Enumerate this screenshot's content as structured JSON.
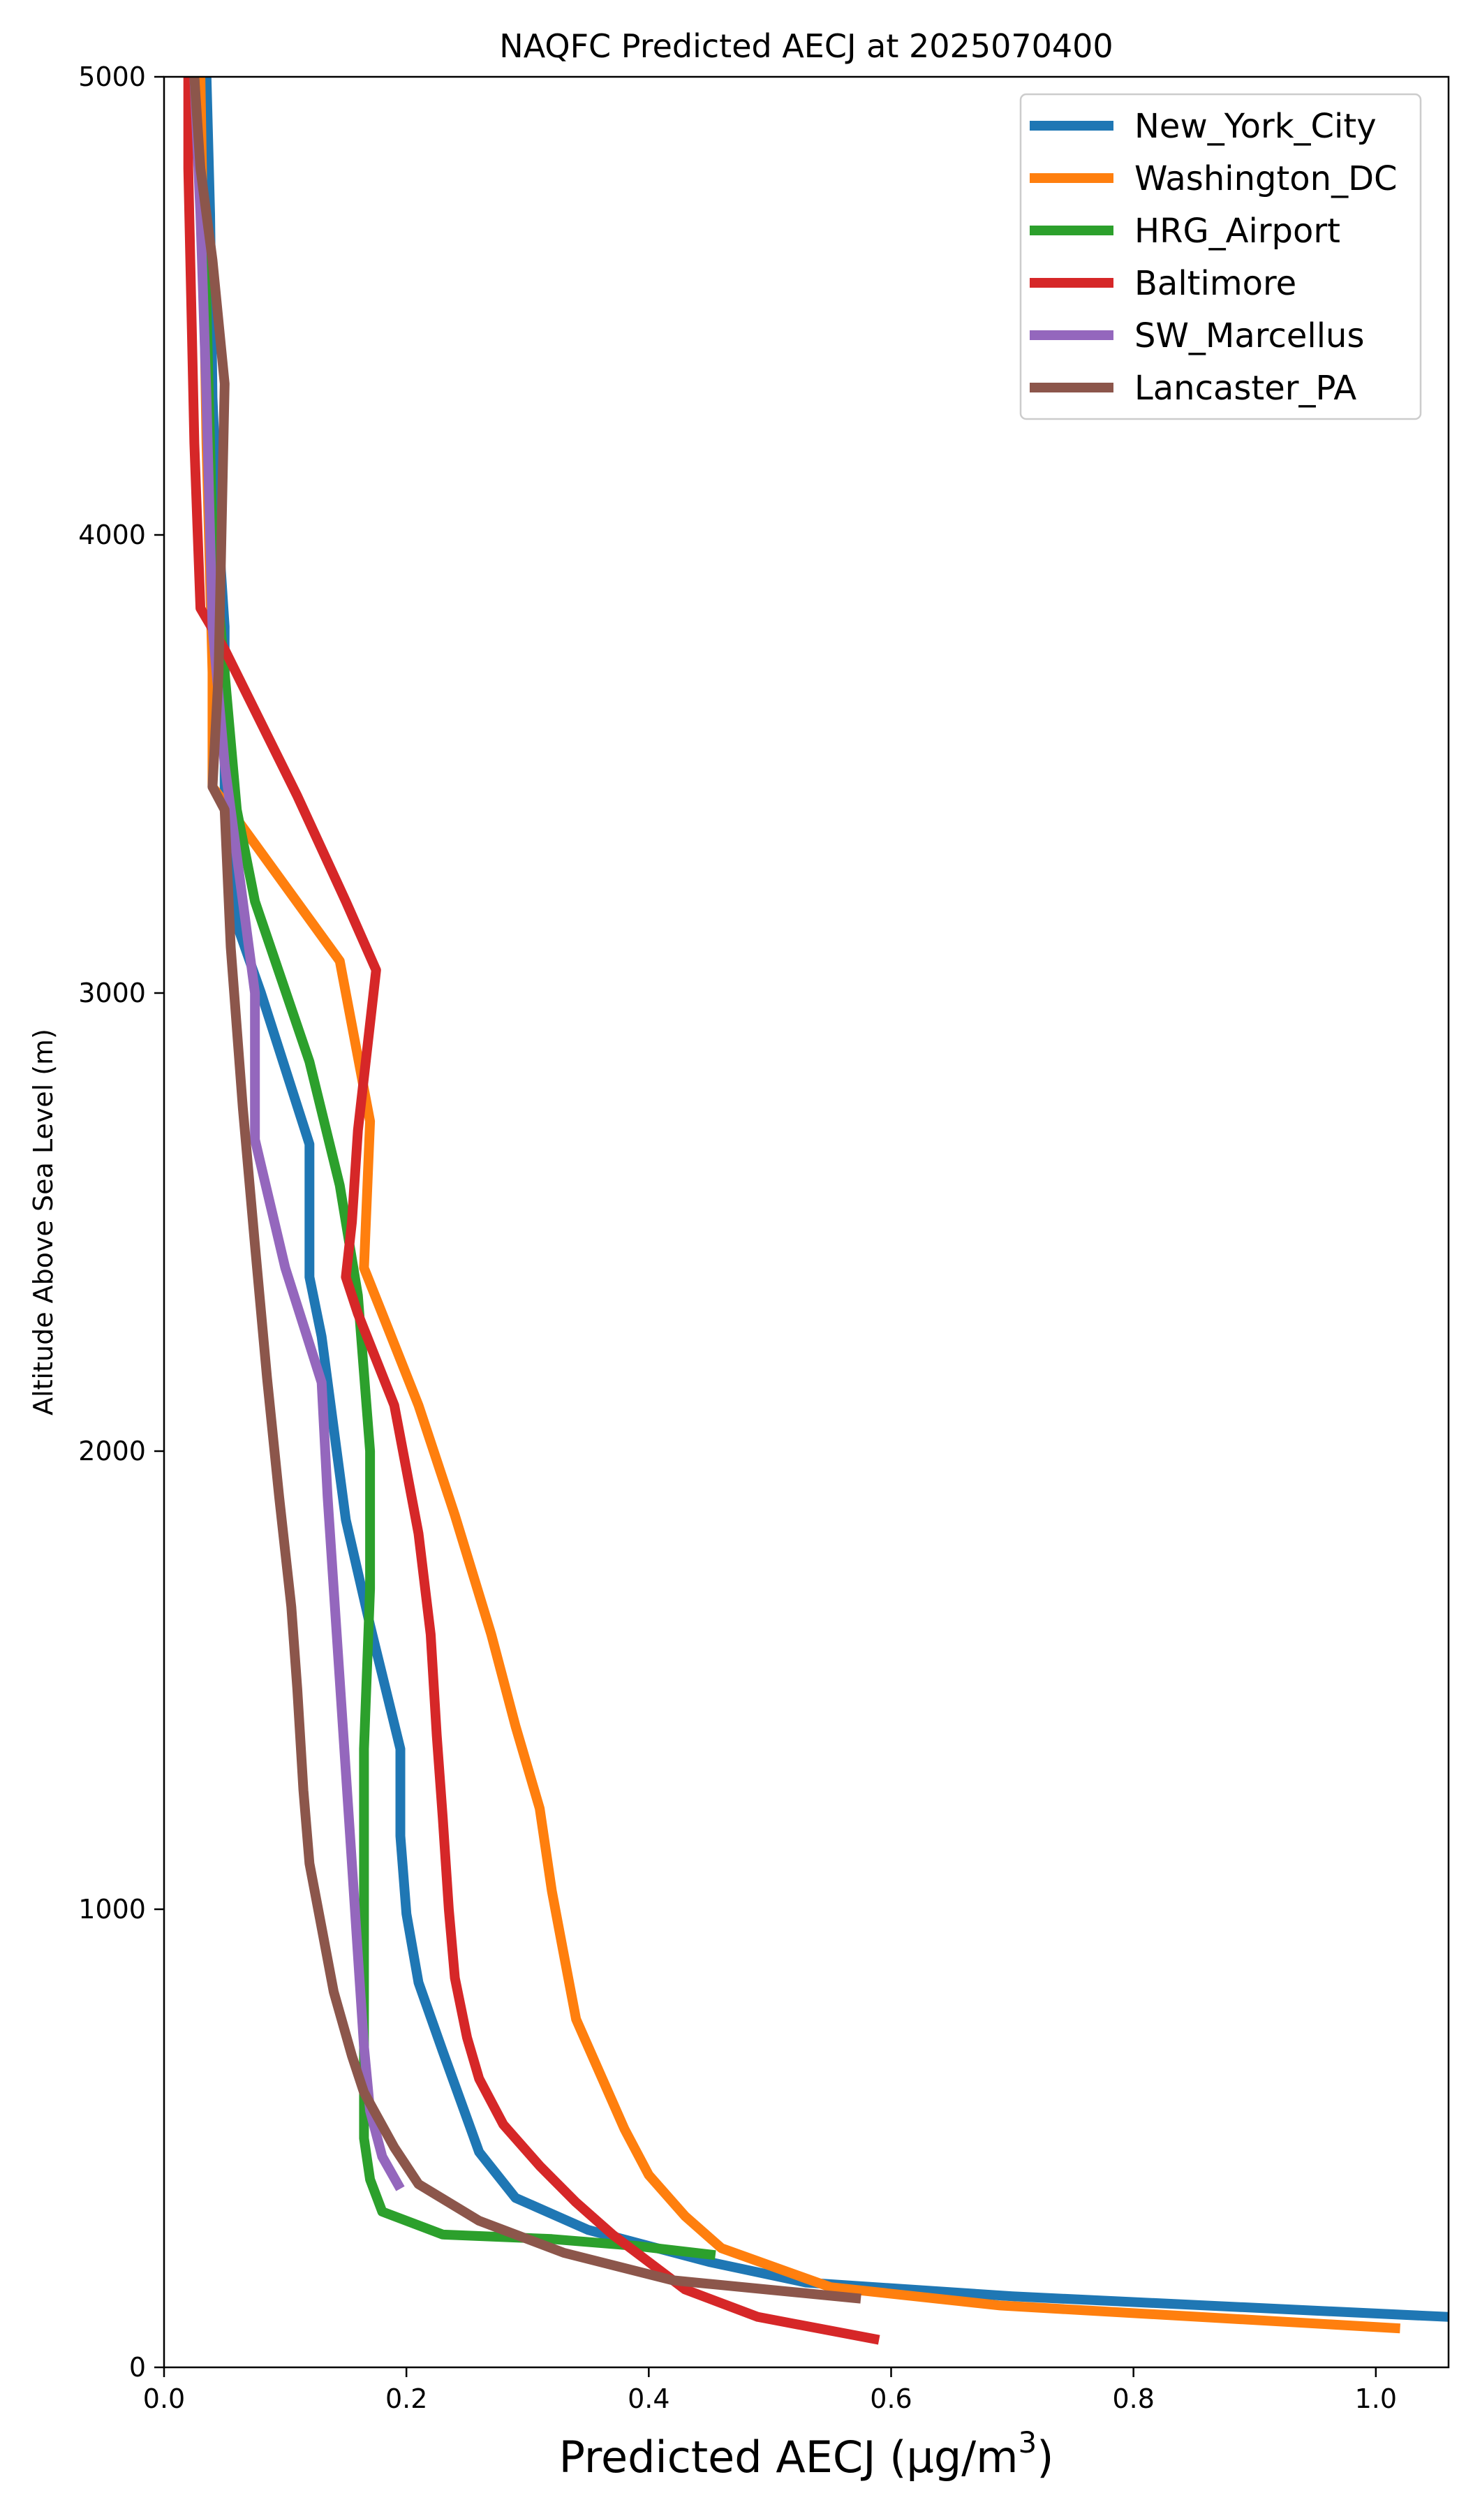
{
  "chart_data": {
    "type": "line",
    "title": "NAQFC Predicted AECJ at 2025070400",
    "xlabel": "Predicted AECJ (μg/m",
    "xlabel_sup": "3",
    "xlabel_close": ")",
    "ylabel": "Altitude Above Sea Level (m)",
    "xlim": [
      0,
      1.06
    ],
    "ylim": [
      0,
      5000
    ],
    "xticks": [
      "0.0",
      "0.2",
      "0.4",
      "0.6",
      "0.8",
      "1.0"
    ],
    "yticks": [
      "0",
      "1000",
      "2000",
      "3000",
      "4000",
      "5000"
    ],
    "legend_position": "top-right",
    "grid": false,
    "series": [
      {
        "name": "New_York_City",
        "color": "#1f77b4",
        "points": [
          [
            1.06,
            110
          ],
          [
            0.7,
            155
          ],
          [
            0.53,
            185
          ],
          [
            0.45,
            230
          ],
          [
            0.35,
            300
          ],
          [
            0.29,
            370
          ],
          [
            0.26,
            470
          ],
          [
            0.23,
            690
          ],
          [
            0.21,
            840
          ],
          [
            0.2,
            990
          ],
          [
            0.195,
            1160
          ],
          [
            0.195,
            1350
          ],
          [
            0.17,
            1620
          ],
          [
            0.15,
            1850
          ],
          [
            0.14,
            2050
          ],
          [
            0.13,
            2250
          ],
          [
            0.12,
            2380
          ],
          [
            0.12,
            2670
          ],
          [
            0.08,
            3000
          ],
          [
            0.06,
            3150
          ],
          [
            0.05,
            3420
          ],
          [
            0.05,
            3800
          ],
          [
            0.045,
            4000
          ],
          [
            0.04,
            4300
          ],
          [
            0.038,
            4700
          ],
          [
            0.035,
            5000
          ]
        ]
      },
      {
        "name": "Washington_DC",
        "color": "#ff7f0e",
        "points": [
          [
            1.02,
            85
          ],
          [
            0.69,
            135
          ],
          [
            0.55,
            175
          ],
          [
            0.46,
            260
          ],
          [
            0.43,
            330
          ],
          [
            0.4,
            420
          ],
          [
            0.38,
            520
          ],
          [
            0.36,
            640
          ],
          [
            0.34,
            760
          ],
          [
            0.33,
            900
          ],
          [
            0.32,
            1040
          ],
          [
            0.31,
            1220
          ],
          [
            0.29,
            1400
          ],
          [
            0.27,
            1600
          ],
          [
            0.24,
            1860
          ],
          [
            0.21,
            2100
          ],
          [
            0.18,
            2300
          ],
          [
            0.165,
            2400
          ],
          [
            0.17,
            2720
          ],
          [
            0.145,
            3070
          ],
          [
            0.06,
            3380
          ],
          [
            0.04,
            3450
          ],
          [
            0.04,
            3700
          ],
          [
            0.035,
            4200
          ],
          [
            0.03,
            5000
          ]
        ]
      },
      {
        "name": "HRG_Airport",
        "color": "#2ca02c",
        "points": [
          [
            0.455,
            245
          ],
          [
            0.39,
            265
          ],
          [
            0.32,
            280
          ],
          [
            0.23,
            290
          ],
          [
            0.18,
            340
          ],
          [
            0.17,
            410
          ],
          [
            0.165,
            500
          ],
          [
            0.165,
            1000
          ],
          [
            0.165,
            1350
          ],
          [
            0.17,
            1700
          ],
          [
            0.17,
            2000
          ],
          [
            0.16,
            2340
          ],
          [
            0.145,
            2580
          ],
          [
            0.12,
            2850
          ],
          [
            0.075,
            3200
          ],
          [
            0.06,
            3400
          ],
          [
            0.05,
            3700
          ],
          [
            0.04,
            4000
          ],
          [
            0.035,
            4500
          ],
          [
            0.025,
            5000
          ]
        ]
      },
      {
        "name": "Baltimore",
        "color": "#d62728",
        "points": [
          [
            0.59,
            60
          ],
          [
            0.49,
            110
          ],
          [
            0.43,
            170
          ],
          [
            0.4,
            230
          ],
          [
            0.37,
            290
          ],
          [
            0.34,
            360
          ],
          [
            0.31,
            440
          ],
          [
            0.28,
            530
          ],
          [
            0.26,
            630
          ],
          [
            0.25,
            720
          ],
          [
            0.24,
            850
          ],
          [
            0.235,
            1000
          ],
          [
            0.23,
            1200
          ],
          [
            0.225,
            1380
          ],
          [
            0.22,
            1600
          ],
          [
            0.21,
            1820
          ],
          [
            0.19,
            2100
          ],
          [
            0.16,
            2300
          ],
          [
            0.15,
            2380
          ],
          [
            0.155,
            2500
          ],
          [
            0.16,
            2700
          ],
          [
            0.175,
            3050
          ],
          [
            0.15,
            3200
          ],
          [
            0.11,
            3430
          ],
          [
            0.05,
            3750
          ],
          [
            0.03,
            3840
          ],
          [
            0.025,
            4200
          ],
          [
            0.02,
            4800
          ],
          [
            0.02,
            5000
          ]
        ]
      },
      {
        "name": "SW_Marcellus",
        "color": "#9467bd",
        "points": [
          [
            0.195,
            390
          ],
          [
            0.18,
            460
          ],
          [
            0.17,
            560
          ],
          [
            0.165,
            700
          ],
          [
            0.16,
            900
          ],
          [
            0.155,
            1100
          ],
          [
            0.15,
            1300
          ],
          [
            0.145,
            1500
          ],
          [
            0.14,
            1700
          ],
          [
            0.135,
            1900
          ],
          [
            0.13,
            2150
          ],
          [
            0.1,
            2400
          ],
          [
            0.075,
            2680
          ],
          [
            0.075,
            3000
          ],
          [
            0.07,
            3100
          ],
          [
            0.06,
            3300
          ],
          [
            0.05,
            3500
          ],
          [
            0.04,
            3800
          ],
          [
            0.035,
            4300
          ],
          [
            0.03,
            4700
          ],
          [
            0.025,
            5000
          ]
        ]
      },
      {
        "name": "Lancaster_PA",
        "color": "#8c564b",
        "points": [
          [
            0.575,
            150
          ],
          [
            0.42,
            190
          ],
          [
            0.33,
            250
          ],
          [
            0.26,
            320
          ],
          [
            0.21,
            400
          ],
          [
            0.19,
            480
          ],
          [
            0.165,
            600
          ],
          [
            0.155,
            680
          ],
          [
            0.14,
            820
          ],
          [
            0.13,
            960
          ],
          [
            0.12,
            1100
          ],
          [
            0.115,
            1260
          ],
          [
            0.11,
            1480
          ],
          [
            0.105,
            1660
          ],
          [
            0.095,
            1900
          ],
          [
            0.085,
            2160
          ],
          [
            0.075,
            2450
          ],
          [
            0.065,
            2750
          ],
          [
            0.055,
            3100
          ],
          [
            0.05,
            3400
          ],
          [
            0.04,
            3450
          ],
          [
            0.045,
            3700
          ],
          [
            0.05,
            4330
          ],
          [
            0.04,
            4600
          ],
          [
            0.03,
            4800
          ],
          [
            0.025,
            5000
          ]
        ]
      }
    ]
  }
}
